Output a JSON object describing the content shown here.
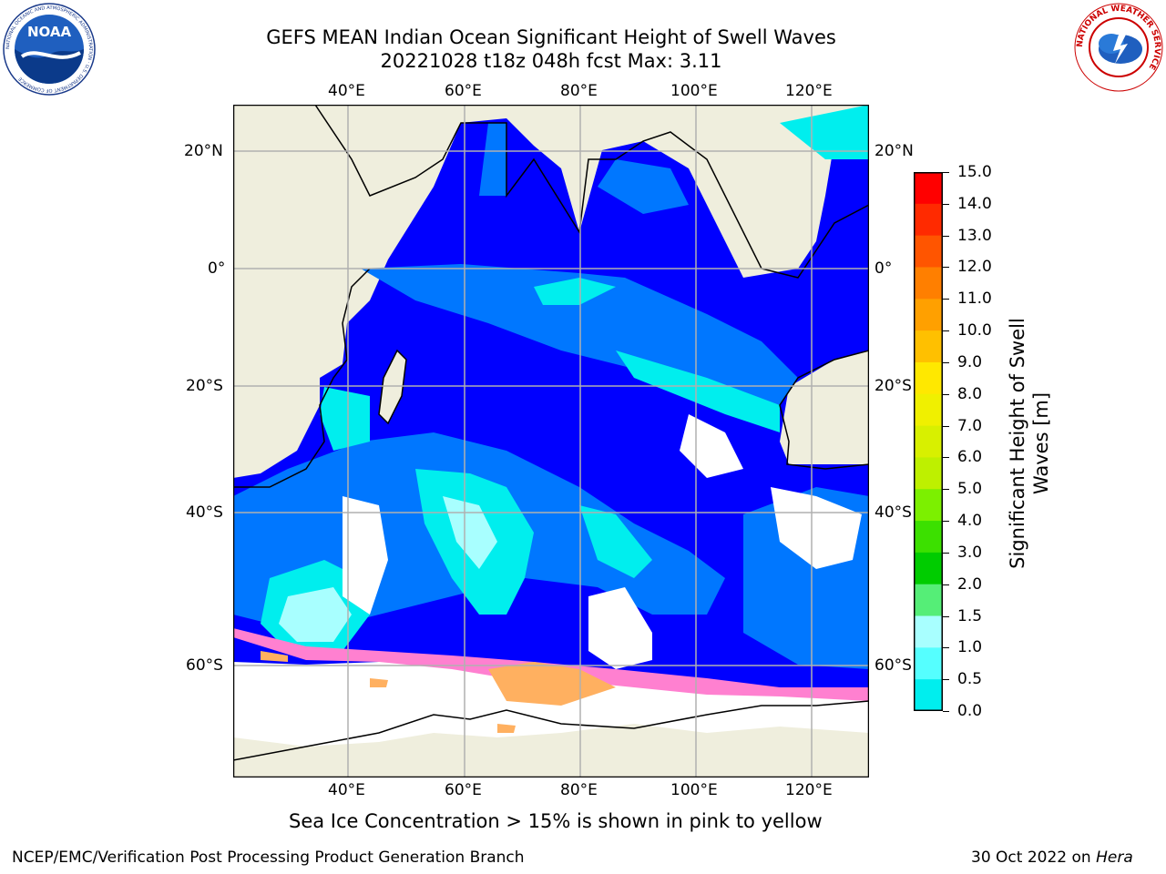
{
  "title": {
    "line1": "GEFS MEAN Indian Ocean Significant Height of Swell Waves",
    "line2": "20221028 t18z 048h fcst   Max: 3.11"
  },
  "map": {
    "lon_ticks_top": [
      "40°E",
      "60°E",
      "80°E",
      "100°E",
      "120°E"
    ],
    "lon_ticks_bottom": [
      "40°E",
      "60°E",
      "80°E",
      "100°E",
      "120°E"
    ],
    "lat_ticks_left": [
      "20°N",
      "0°",
      "20°S",
      "40°S",
      "60°S"
    ],
    "lat_ticks_right": [
      "20°N",
      "0°",
      "20°S",
      "40°S",
      "60°S"
    ],
    "land_color": "#efeedd",
    "ice_color": "#ffffff",
    "grid": true
  },
  "colorbar": {
    "label_line1": "Significant Height of Swell",
    "label_line2": "Waves [m]",
    "ticks": [
      "15.0",
      "14.0",
      "13.0",
      "12.0",
      "11.0",
      "10.0",
      "9.0",
      "8.0",
      "7.0",
      "6.0",
      "5.0",
      "4.0",
      "3.0",
      "2.0",
      "1.5",
      "1.0",
      "0.5",
      "0.0"
    ],
    "colors": [
      "#ff0000",
      "#ff2a00",
      "#ff5500",
      "#ff7f00",
      "#ffa000",
      "#ffc000",
      "#ffe800",
      "#f0f000",
      "#d8f000",
      "#bef000",
      "#7cf000",
      "#3ce000",
      "#00cc00",
      "#55ee77",
      "#a8ffff",
      "#55ffff",
      "#00eeee",
      "#0077ff",
      "#0000ff"
    ]
  },
  "caption": "Sea Ice Concentration > 15% is shown in pink to yellow",
  "footer": {
    "left": "NCEP/EMC/Verification Post Processing Product Generation Branch",
    "right_date": "30 Oct 2022 on ",
    "right_machine": "Hera"
  },
  "logos": {
    "noaa_text": "NOAA",
    "noaa_ring_text": "NATIONAL OCEANIC AND ATMOSPHERIC ADMINISTRATION · U.S. DEPARTMENT OF COMMERCE",
    "nws_ring_text": "NATIONAL WEATHER SERVICE"
  }
}
